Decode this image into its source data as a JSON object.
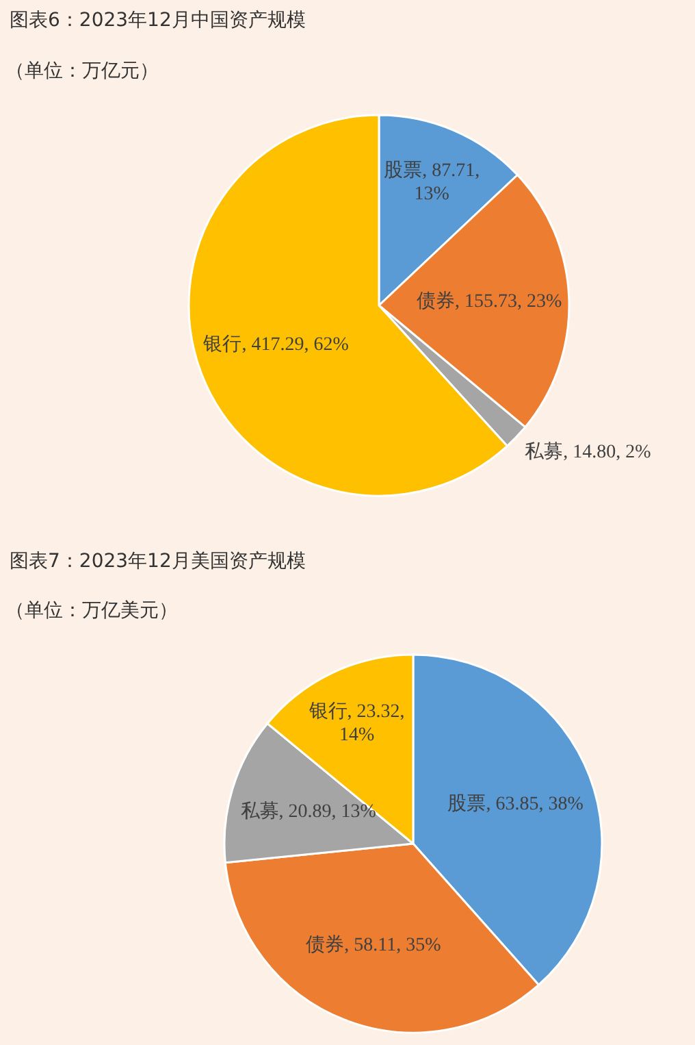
{
  "chart_data": [
    {
      "type": "pie",
      "title": "图表6：2023年12月中国资产规模",
      "subtitle": "（单位：万亿元）",
      "categories": [
        "股票",
        "债券",
        "私募",
        "银行"
      ],
      "values": [
        87.71,
        155.73,
        14.8,
        417.29
      ],
      "colors": [
        "#5b9bd5",
        "#ed7d31",
        "#a5a5a5",
        "#ffc000"
      ],
      "value_labels": [
        "87.71, 13%",
        "155.73, 23%",
        "14.80, 2%",
        "417.29, 62%"
      ]
    },
    {
      "type": "pie",
      "title": "图表7：2023年12月美国资产规模",
      "subtitle": "（单位：万亿美元）",
      "categories": [
        "股票",
        "债券",
        "私募",
        "银行"
      ],
      "values": [
        63.85,
        58.11,
        20.89,
        23.32
      ],
      "colors": [
        "#5b9bd5",
        "#ed7d31",
        "#a5a5a5",
        "#ffc000"
      ],
      "value_labels": [
        "63.85, 38%",
        "58.11, 35%",
        "20.89, 13%",
        "23.32, 14%"
      ]
    }
  ]
}
